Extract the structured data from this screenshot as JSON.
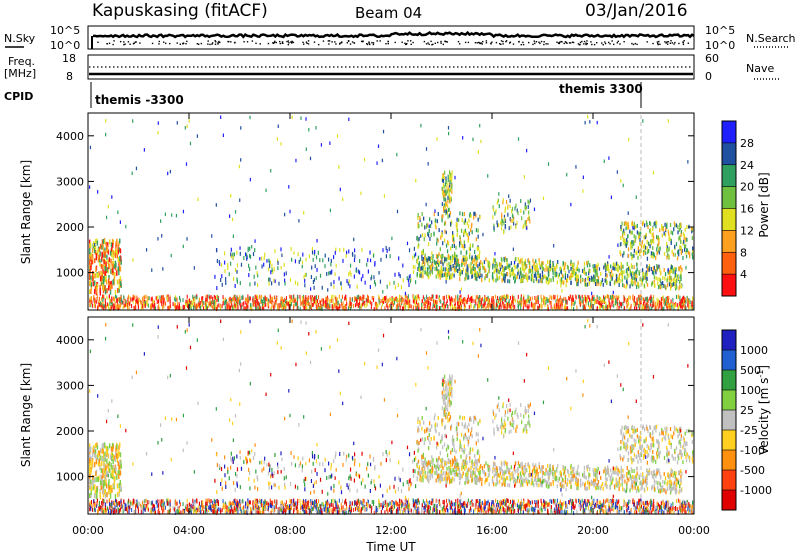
{
  "header": {
    "station": "Kapuskasing (fitACF)",
    "beam": "Beam 04",
    "date": "03/Jan/2016"
  },
  "top_panels": {
    "nsky_label": "N.Sky",
    "nsearch_label": "N.Search",
    "noise_ticks_left": [
      "10^5",
      "10^0"
    ],
    "noise_ticks_right": [
      "10^5",
      "10^0"
    ],
    "freq_label_1": "Freq.",
    "freq_label_2": "[MHz]",
    "nave_label": "Nave",
    "freq_ticks": [
      "18",
      "8"
    ],
    "nave_ticks": [
      "60",
      "0"
    ],
    "cpid_label": "CPID",
    "cpid_left": "themis -3300",
    "cpid_right": "themis 3300"
  },
  "chart_data": [
    {
      "type": "heatmap",
      "name": "power",
      "ylabel": "Slant Range [km]",
      "yticks": [
        "4000",
        "3000",
        "2000",
        "1000"
      ],
      "ylim": [
        180,
        4500
      ],
      "colorbar_label": "Power [dB]",
      "colorbar_ticks": [
        "28",
        "24",
        "20",
        "16",
        "12",
        "8",
        "4"
      ],
      "colors": [
        "#2020ff",
        "#2050a0",
        "#30a060",
        "#70c040",
        "#e0e020",
        "#ffa020",
        "#ff6010",
        "#ff1010"
      ]
    },
    {
      "type": "heatmap",
      "name": "velocity",
      "xlabel": "Time UT",
      "ylabel": "Slant Range [km]",
      "yticks": [
        "4000",
        "3000",
        "2000",
        "1000"
      ],
      "ylim": [
        180,
        4500
      ],
      "xticks": [
        "00:00",
        "04:00",
        "08:00",
        "12:00",
        "16:00",
        "20:00",
        "00:00"
      ],
      "xlim": [
        0,
        24
      ],
      "colorbar_label_main": "Velocity [m s",
      "colorbar_label_sup": "-1",
      "colorbar_label_end": "]",
      "colorbar_ticks": [
        "1000",
        "500",
        "100",
        "25",
        "-25",
        "-100",
        "-500",
        "-1000"
      ],
      "colors": [
        "#2020c0",
        "#2060d0",
        "#30a040",
        "#80d040",
        "#c0c0c0",
        "#ffd020",
        "#ff9010",
        "#ff4010",
        "#e00000"
      ]
    }
  ]
}
